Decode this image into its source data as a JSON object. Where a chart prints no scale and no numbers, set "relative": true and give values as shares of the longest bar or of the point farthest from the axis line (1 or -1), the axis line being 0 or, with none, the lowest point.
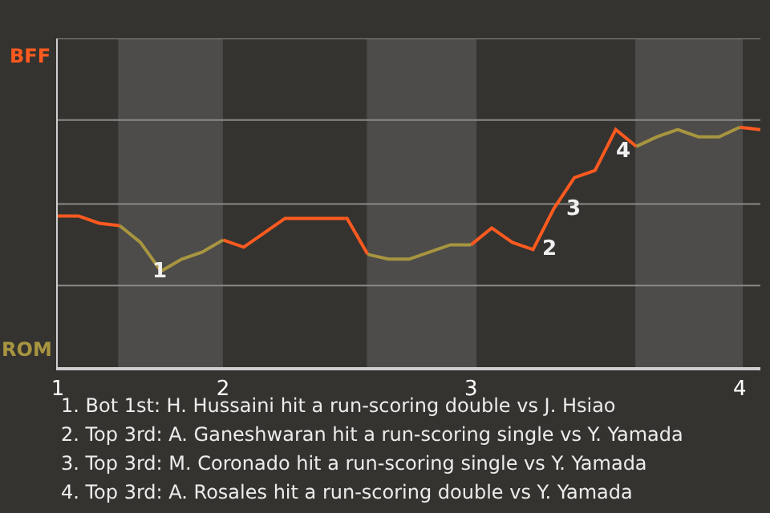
{
  "chart_data": {
    "type": "line",
    "categories": [
      "1",
      null,
      null,
      null,
      null,
      null,
      null,
      null,
      "2",
      null,
      null,
      null,
      null,
      null,
      null,
      null,
      null,
      null,
      null,
      null,
      "3",
      null,
      null,
      null,
      null,
      null,
      null,
      null,
      null,
      null,
      null,
      null,
      null,
      "4",
      null
    ],
    "relative": true,
    "series": [
      {
        "name": "BFF",
        "color": "#ff5a1f",
        "values": [
          0.63,
          0.63,
          0.6,
          0.59,
          null,
          null,
          null,
          null,
          0.53,
          0.5,
          0.56,
          0.62,
          0.62,
          0.62,
          0.62,
          0.47,
          null,
          null,
          null,
          null,
          0.51,
          0.58,
          0.52,
          0.49,
          0.66,
          0.79,
          0.82,
          0.99,
          0.92,
          null,
          null,
          null,
          null,
          1,
          0.99
        ]
      },
      {
        "name": "ROM",
        "color": "#a89540",
        "values": [
          null,
          null,
          null,
          0.59,
          0.52,
          0.4,
          0.45,
          0.48,
          0.53,
          null,
          null,
          null,
          null,
          null,
          null,
          0.47,
          0.45,
          0.45,
          0.48,
          0.51,
          0.51,
          null,
          null,
          null,
          null,
          null,
          null,
          null,
          0.92,
          0.96,
          0.99,
          0.96,
          0.96,
          1,
          null
        ]
      }
    ],
    "ref_lines": [
      {
        "axis": "y",
        "value": 0.34,
        "color": "#8a8a88"
      },
      {
        "axis": "y",
        "value": 0.68,
        "color": "#8a8a88"
      },
      {
        "axis": "y",
        "value": 1.03,
        "color": "#8a8a88"
      },
      {
        "axis": "y",
        "value": 1.37,
        "color": "#8a8a88"
      }
    ],
    "marker": "none",
    "line_style": "solid",
    "annotations": [
      "1",
      "2",
      "3",
      "4",
      "1. Bot 1st: H. Hussaini hit a run-scoring double vs J. Hsiao",
      "2. Top 3rd: A. Ganeshwaran hit a run-scoring single vs Y. Yamada",
      "3. Top 3rd: M. Coronado hit a run-scoring single vs Y. Yamada",
      "4. Top 3rd: A. Rosales hit a run-scoring double vs Y. Yamada"
    ]
  }
}
